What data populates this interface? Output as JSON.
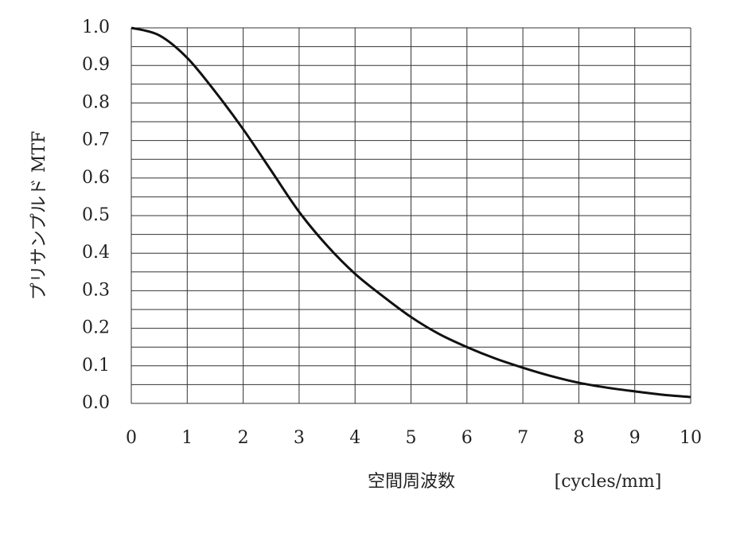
{
  "chart_data": {
    "type": "line",
    "y_label": "プリサンプルド MTF",
    "x_label": "空間周波数",
    "x_unit": "[cycles/mm]",
    "x": [
      0,
      0.5,
      1,
      1.5,
      2,
      2.5,
      3,
      3.5,
      4,
      4.5,
      5,
      5.5,
      6,
      6.5,
      7,
      7.5,
      8,
      8.5,
      9,
      9.5,
      10
    ],
    "series": [
      {
        "name": "MTF",
        "color": "#111111",
        "values": [
          1.0,
          0.98,
          0.92,
          0.83,
          0.73,
          0.62,
          0.51,
          0.42,
          0.345,
          0.285,
          0.23,
          0.185,
          0.15,
          0.12,
          0.095,
          0.073,
          0.055,
          0.042,
          0.032,
          0.023,
          0.017
        ]
      }
    ],
    "xlim": [
      0,
      10
    ],
    "ylim": [
      0,
      1
    ],
    "xticks": [
      0,
      1,
      2,
      3,
      4,
      5,
      6,
      7,
      8,
      9,
      10
    ],
    "yticks": [
      {
        "value": 0,
        "label": "0.0"
      },
      0.1,
      0.2,
      0.3,
      0.4,
      0.5,
      0.6,
      0.7,
      0.8,
      0.9,
      {
        "value": 1,
        "label": "1.0"
      }
    ],
    "y_minor_ticks": [
      0.05,
      0.15,
      0.25,
      0.35,
      0.45,
      0.55,
      0.65,
      0.75,
      0.85,
      0.95
    ],
    "grid": true
  }
}
